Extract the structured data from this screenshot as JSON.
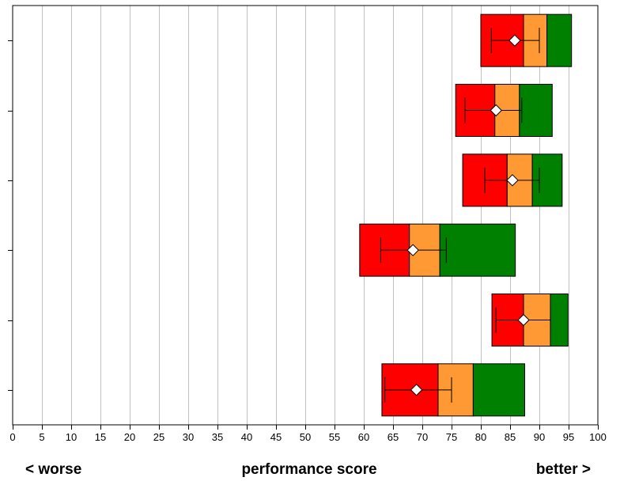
{
  "chart_data": {
    "type": "box",
    "xlim": [
      0,
      100
    ],
    "x_ticks": [
      0,
      5,
      10,
      15,
      20,
      25,
      30,
      35,
      40,
      45,
      50,
      55,
      60,
      65,
      70,
      75,
      80,
      85,
      90,
      95,
      100
    ],
    "grid": true,
    "y_ticks_labeled": false,
    "xlabel": "performance score",
    "left_label": "< worse",
    "right_label": "better >",
    "colors": {
      "low": "#ff0000",
      "mid": "#ff9933",
      "high": "#008000",
      "marker": "#ffffff",
      "whisker": "#000000"
    },
    "rows": [
      {
        "red_start": 80.0,
        "red_end": 87.3,
        "orange_end": 91.3,
        "green_end": 95.5,
        "mean": 85.8,
        "err_low": 81.8,
        "err_high": 90.0
      },
      {
        "red_start": 75.7,
        "red_end": 82.4,
        "orange_end": 86.6,
        "green_end": 92.2,
        "mean": 82.6,
        "err_low": 77.3,
        "err_high": 87.0
      },
      {
        "red_start": 76.9,
        "red_end": 84.5,
        "orange_end": 88.8,
        "green_end": 93.9,
        "mean": 85.4,
        "err_low": 80.7,
        "err_high": 90.0
      },
      {
        "red_start": 59.3,
        "red_end": 67.8,
        "orange_end": 73.0,
        "green_end": 85.9,
        "mean": 68.4,
        "err_low": 62.9,
        "err_high": 74.1
      },
      {
        "red_start": 81.9,
        "red_end": 87.3,
        "orange_end": 91.9,
        "green_end": 94.9,
        "mean": 87.3,
        "err_low": 82.6,
        "err_high": 91.9
      },
      {
        "red_start": 63.1,
        "red_end": 72.7,
        "orange_end": 78.7,
        "green_end": 87.5,
        "mean": 69.0,
        "err_low": 63.6,
        "err_high": 75.0
      }
    ]
  }
}
